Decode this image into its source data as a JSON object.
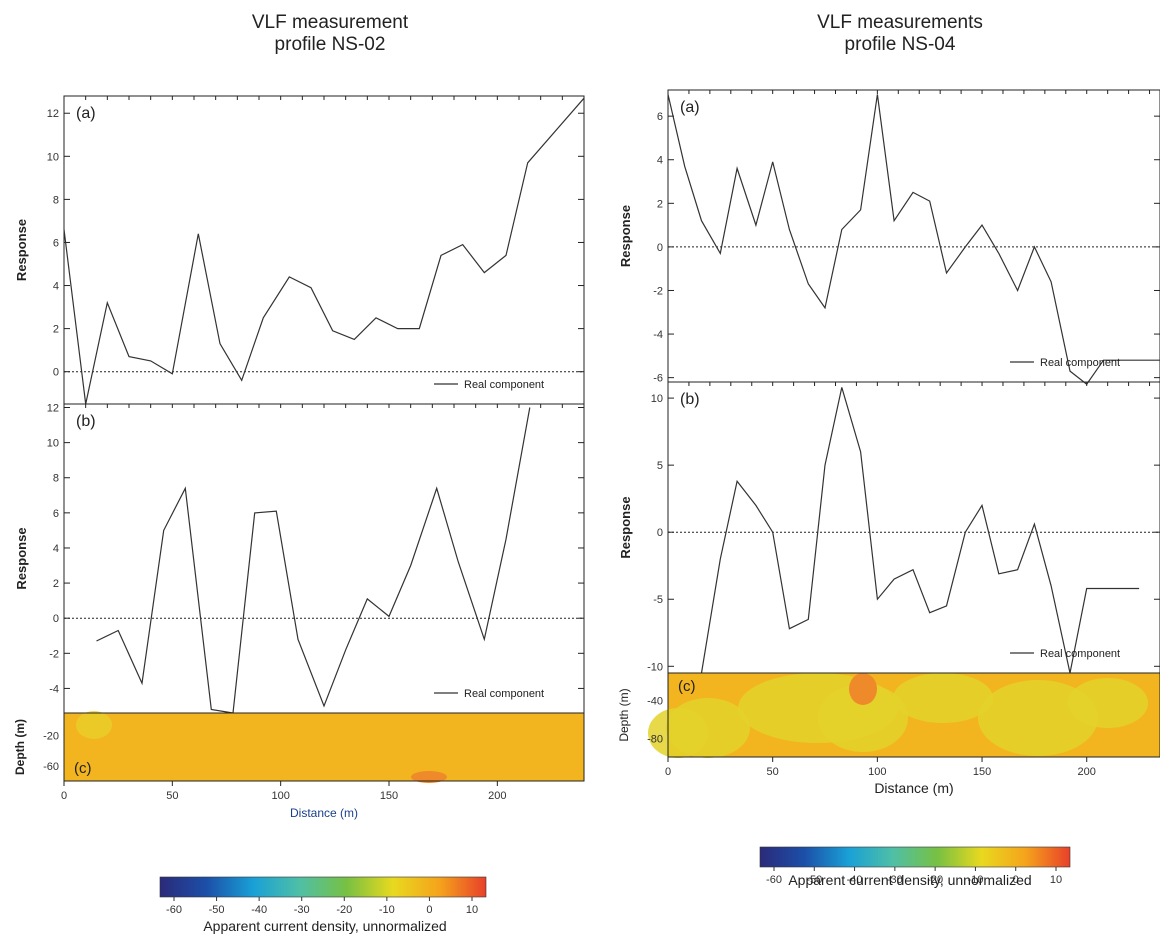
{
  "left_figure": {
    "title_line1": "VLF measurement",
    "title_line2": "profile NS-02",
    "colorbar_label": "Apparent current density, unnormalized"
  },
  "right_figure": {
    "title_line1": "VLF measurements",
    "title_line2": "profile NS-04",
    "colorbar_label": "Apparent current density, unnormalized"
  },
  "colorbar": {
    "ticks": [
      "-60",
      "-50",
      "-40",
      "-30",
      "-20",
      "-10",
      "0",
      "10"
    ],
    "stops": [
      "#2b2a7a",
      "#1c4fa8",
      "#19a0d6",
      "#4fbfa6",
      "#77c043",
      "#e8d91f",
      "#f5a31c",
      "#e8402a"
    ]
  },
  "chart_data": [
    {
      "panel": "left-a",
      "type": "line",
      "label": "(a)",
      "ylabel": "Response",
      "xlim": [
        0,
        240
      ],
      "ylim": [
        -1.5,
        12.8
      ],
      "yticks": [
        0,
        2,
        4,
        6,
        8,
        10,
        12
      ],
      "legend": "Real component",
      "legend_position": "bottom-right",
      "reference_line_y": 0,
      "series": [
        {
          "name": "Real component",
          "x": [
            0,
            10,
            20,
            30,
            40,
            50,
            62,
            72,
            82,
            92,
            104,
            114,
            124,
            134,
            144,
            154,
            164,
            174,
            184,
            194,
            204,
            214,
            240
          ],
          "y": [
            6.6,
            -1.5,
            3.2,
            0.7,
            0.5,
            -0.1,
            6.4,
            1.3,
            -0.4,
            2.5,
            4.4,
            3.9,
            1.9,
            1.5,
            2.5,
            2.0,
            2.0,
            5.4,
            5.9,
            4.6,
            5.4,
            9.7,
            12.7
          ]
        }
      ]
    },
    {
      "panel": "left-b",
      "type": "line",
      "label": "(b)",
      "ylabel": "Response",
      "xlim": [
        0,
        240
      ],
      "ylim": [
        -5.4,
        12.2
      ],
      "yticks": [
        -4,
        -2,
        0,
        2,
        4,
        6,
        8,
        10,
        12
      ],
      "legend": "Real component",
      "legend_position": "bottom-right",
      "reference_line_y": 0,
      "series": [
        {
          "name": "Real component",
          "x": [
            15,
            25,
            36,
            46,
            56,
            68,
            78,
            88,
            98,
            108,
            120,
            130,
            140,
            150,
            160,
            172,
            182,
            194,
            204,
            215
          ],
          "y": [
            -1.3,
            -0.7,
            -3.7,
            5.0,
            7.4,
            -5.2,
            -5.4,
            6.0,
            6.1,
            -1.2,
            -5.0,
            -1.8,
            1.1,
            0.1,
            3.0,
            7.4,
            3.2,
            -1.2,
            4.5,
            12.0
          ]
        }
      ]
    },
    {
      "panel": "left-c",
      "type": "heatmap",
      "label": "(c)",
      "ylabel": "Depth (m)",
      "yticks": [
        "-20",
        "-60"
      ],
      "xlabel": "Distance (m)",
      "xlim": [
        0,
        240
      ],
      "xticks": [
        0,
        50,
        100,
        150,
        200
      ]
    },
    {
      "panel": "right-a",
      "type": "line",
      "label": "(a)",
      "ylabel": "Response",
      "xlim": [
        0,
        235
      ],
      "ylim": [
        -6.2,
        7.2
      ],
      "yticks": [
        -6,
        -4,
        -2,
        0,
        2,
        4,
        6
      ],
      "legend": "Real component",
      "legend_position": "bottom-right",
      "reference_line_y": 0,
      "series": [
        {
          "name": "Real component",
          "x": [
            0,
            8,
            16,
            25,
            33,
            42,
            50,
            58,
            67,
            75,
            83,
            92,
            100,
            108,
            117,
            125,
            133,
            142,
            150,
            158,
            167,
            175,
            183,
            192,
            200,
            208,
            217,
            225,
            235
          ],
          "y": [
            7.0,
            3.7,
            1.2,
            -0.3,
            3.6,
            1.0,
            3.9,
            0.8,
            -1.7,
            -2.8,
            0.8,
            1.7,
            7.0,
            1.2,
            2.5,
            2.1,
            -1.2,
            0.0,
            1.0,
            -0.3,
            -2.0,
            0.0,
            -1.6,
            -5.7,
            -6.3,
            -5.2,
            -5.2,
            -5.2,
            -5.2
          ]
        }
      ]
    },
    {
      "panel": "right-b",
      "type": "line",
      "label": "(b)",
      "ylabel": "Response",
      "xlim": [
        0,
        235
      ],
      "ylim": [
        -10.5,
        11.2
      ],
      "yticks": [
        -10,
        -5,
        0,
        5,
        10
      ],
      "legend": "Real component",
      "legend_position": "bottom-right",
      "reference_line_y": 0,
      "series": [
        {
          "name": "Real component",
          "x": [
            16,
            25,
            33,
            42,
            50,
            58,
            67,
            75,
            83,
            92,
            100,
            108,
            117,
            125,
            133,
            142,
            150,
            158,
            167,
            175,
            183,
            192,
            200,
            208,
            217,
            225
          ],
          "y": [
            -10.5,
            -2.0,
            3.8,
            2.0,
            0.0,
            -7.2,
            -6.5,
            5.0,
            10.8,
            6.0,
            -5.0,
            -3.5,
            -2.8,
            -6.0,
            -5.5,
            0.0,
            2.0,
            -3.1,
            -2.8,
            0.6,
            -4.0,
            -10.5,
            -4.2,
            -4.2,
            -4.2,
            -4.2
          ]
        }
      ]
    },
    {
      "panel": "right-c",
      "type": "heatmap",
      "label": "(c)",
      "ylabel": "Depth (m)",
      "yticks": [
        "-40",
        "-80"
      ],
      "xlabel": "Distance (m)",
      "xlim": [
        0,
        235
      ],
      "xticks": [
        0,
        50,
        100,
        150,
        200
      ]
    }
  ]
}
